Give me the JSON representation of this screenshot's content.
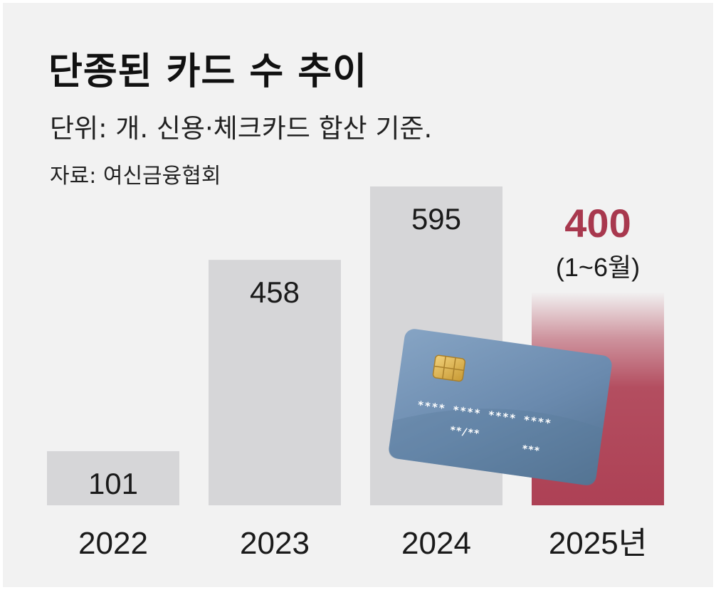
{
  "header": {
    "title": "단종된 카드 수 추이",
    "unit_note": "단위: 개. 신용·체크카드 합산 기준.",
    "source": "자료: 여신금융협회"
  },
  "card_illustration": {
    "number_row1": "**** **** **** ****",
    "expiry": "**/**",
    "cvc": "***"
  },
  "colors": {
    "background": "#f2f2f2",
    "bar": "#d6d6d8",
    "highlight_bar": "#b04558",
    "highlight_text": "#a8384e",
    "card_body": "#6d8db0"
  },
  "chart_data": {
    "type": "bar",
    "title": "단종된 카드 수 추이",
    "categories": [
      "2022",
      "2023",
      "2024",
      "2025년"
    ],
    "values": [
      101,
      458,
      595,
      400
    ],
    "value_labels": [
      "101",
      "458",
      "595",
      "400"
    ],
    "highlight_index": 3,
    "highlight_note": "(1~6월)",
    "ylabel": "",
    "ylim": [
      0,
      620
    ],
    "grid": false
  }
}
